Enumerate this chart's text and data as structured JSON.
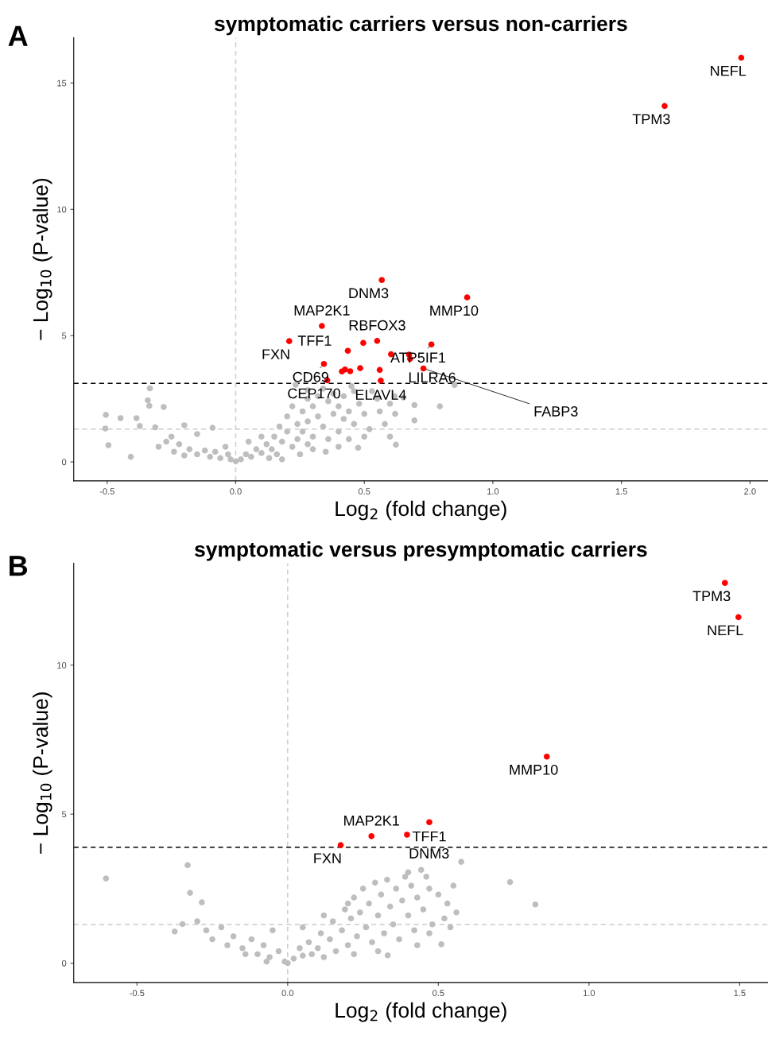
{
  "chart_data": [
    {
      "type": "scatter",
      "title": "symptomatic carriers versus non-carriers",
      "xlabel": "Log$_{2}$ (fold change)",
      "ylabel": "− Log$_{10}$ (P-value)",
      "xlim": [
        -0.63,
        2.07
      ],
      "ylim": [
        -0.75,
        16.8
      ],
      "xticks": [
        {
          "value": -0.5,
          "label": "-0.5"
        },
        {
          "value": 0,
          "label": "0.0"
        },
        {
          "value": 0.5,
          "label": "0.5"
        },
        {
          "value": 1,
          "label": "1.0"
        },
        {
          "value": 1.5,
          "label": "1.5"
        },
        {
          "value": 2,
          "label": "2.0"
        }
      ],
      "yticks": [
        0,
        5,
        10,
        15
      ],
      "grid": false,
      "legend": false,
      "marker": "circle",
      "ref_lines": [
        {
          "axis": "y",
          "value": 3.11,
          "color": "#000000",
          "line_style": "dashed"
        },
        {
          "axis": "y",
          "value": 1.3,
          "color": "#cccccc",
          "line_style": "dashed"
        },
        {
          "axis": "x",
          "value": 0,
          "color": "#cccccc",
          "line_style": "dashed"
        }
      ],
      "series": [
        {
          "color": "#bebebe",
          "x": [
            -0.505,
            -0.507,
            -0.495,
            -0.448,
            -0.386,
            -0.373,
            -0.408,
            -0.334,
            -0.342,
            -0.336,
            -0.28,
            -0.313,
            -0.2,
            -0.15,
            -0.09,
            -0.25,
            -0.27,
            -0.22,
            -0.18,
            -0.24,
            -0.3,
            -0.12,
            -0.1,
            -0.06,
            -0.04,
            -0.15,
            -0.2,
            -0.08,
            -0.02,
            0.0,
            0.02,
            0.04,
            0.06,
            0.08,
            0.05,
            0.1,
            0.12,
            0.1,
            0.14,
            0.15,
            0.17,
            0.16,
            0.18,
            0.2,
            0.2,
            0.22,
            0.22,
            0.24,
            0.24,
            0.26,
            0.26,
            0.28,
            0.28,
            0.28,
            0.3,
            0.3,
            0.32,
            0.32,
            0.34,
            0.34,
            0.36,
            0.36,
            0.38,
            0.38,
            0.4,
            0.4,
            0.42,
            0.42,
            0.44,
            0.44,
            0.46,
            0.46,
            0.48,
            0.5,
            0.5,
            0.233,
            0.28,
            0.851,
            0.794,
            0.695,
            0.695,
            0.652,
            0.618,
            0.623,
            0.476,
            0.55,
            0.56,
            0.58,
            0.53,
            0.6,
            0.62,
            0.52,
            0.35,
            0.25,
            0.4,
            0.6,
            0.13,
            -0.03,
            0.18,
            0.3,
            0.45
          ],
          "values": [
            1.86,
            1.32,
            0.66,
            1.73,
            1.73,
            1.42,
            0.2,
            2.91,
            2.44,
            2.22,
            2.17,
            1.37,
            1.45,
            1.1,
            1.35,
            1.0,
            0.8,
            0.7,
            0.5,
            0.4,
            0.6,
            0.45,
            0.2,
            0.15,
            0.6,
            0.3,
            0.25,
            0.4,
            0.1,
            0.02,
            0.1,
            0.3,
            0.2,
            0.5,
            0.8,
            0.35,
            0.7,
            1.0,
            0.5,
            1.0,
            1.4,
            0.3,
            0.8,
            1.2,
            1.8,
            0.6,
            2.2,
            1.5,
            0.9,
            2.0,
            1.2,
            2.5,
            1.6,
            0.7,
            2.2,
            1.0,
            2.6,
            1.8,
            2.9,
            1.4,
            2.4,
            0.9,
            2.7,
            1.9,
            2.2,
            1.2,
            2.6,
            1.7,
            2.0,
            0.9,
            2.8,
            1.5,
            2.3,
            1.9,
            1.0,
            3.05,
            2.84,
            3.04,
            2.2,
            2.25,
            1.64,
            2.55,
            2.6,
            0.68,
            0.56,
            2.5,
            2.0,
            1.5,
            2.8,
            2.3,
            1.9,
            1.3,
            0.4,
            0.3,
            0.6,
            1.0,
            0.15,
            0.3,
            0.1,
            0.5,
            3.0
          ]
        },
        {
          "color": "#ff0000",
          "x": [
            1.966,
            1.668,
            0.568,
            0.9,
            0.335,
            0.208,
            0.436,
            0.55,
            0.496,
            0.761,
            0.604,
            0.674,
            0.678,
            0.343,
            0.484,
            0.413,
            0.425,
            0.445,
            0.56,
            0.73,
            0.356,
            0.564
          ],
          "values": [
            16.0,
            14.09,
            7.2,
            6.51,
            5.38,
            4.78,
            4.4,
            4.79,
            4.71,
            4.65,
            4.26,
            4.25,
            4.08,
            3.88,
            3.71,
            3.58,
            3.66,
            3.59,
            3.64,
            3.7,
            3.23,
            3.22
          ]
        }
      ],
      "annotations": [
        "A",
        {
          "text": "NEFL",
          "x": 1.966,
          "y": 16.0
        },
        {
          "text": "TPM3",
          "x": 1.668,
          "y": 14.09
        },
        {
          "text": "DNM3",
          "x": 0.568,
          "y": 7.2
        },
        {
          "text": "MMP10",
          "x": 0.9,
          "y": 6.51
        },
        {
          "text": "MAP2K1",
          "x": 0.335,
          "y": 5.38
        },
        {
          "text": "FXN",
          "x": 0.208,
          "y": 4.78
        },
        {
          "text": "TFF1",
          "x": 0.436,
          "y": 4.4
        },
        {
          "text": "RBFOX3",
          "x": 0.55,
          "y": 4.79
        },
        {
          "text": "ATP5IF1",
          "x": 0.761,
          "y": 4.65
        },
        {
          "text": "CD69",
          "x": 0.343,
          "y": 3.88
        },
        {
          "text": "LILRA6",
          "x": 0.678,
          "y": 4.08
        },
        {
          "text": "CEP170",
          "x": 0.356,
          "y": 3.23
        },
        {
          "text": "FABP3",
          "x": 0.73,
          "y": 3.7
        },
        {
          "text": "ELAVL4",
          "x": 0.564,
          "y": 3.22
        }
      ]
    },
    {
      "type": "scatter",
      "title": "symptomatic versus presymptomatic carriers",
      "xlabel": "Log$_{2}$ (fold change)",
      "ylabel": "− Log$_{10}$ (P-value)",
      "xlim": [
        -0.71,
        1.594
      ],
      "ylim": [
        -0.65,
        13.42
      ],
      "xticks": [
        {
          "value": -0.5,
          "label": "-0.5"
        },
        {
          "value": 0,
          "label": "0.0"
        },
        {
          "value": 0.5,
          "label": "0.5"
        },
        {
          "value": 1,
          "label": "1.0"
        },
        {
          "value": 1.5,
          "label": "1.5"
        }
      ],
      "yticks": [
        0,
        5,
        10
      ],
      "grid": false,
      "legend": false,
      "marker": "circle",
      "ref_lines": [
        {
          "axis": "y",
          "value": 3.89,
          "color": "#000000",
          "line_style": "dashed"
        },
        {
          "axis": "y",
          "value": 1.3,
          "color": "#cccccc",
          "line_style": "dashed"
        },
        {
          "axis": "x",
          "value": 0,
          "color": "#cccccc",
          "line_style": "dashed"
        }
      ],
      "series": [
        {
          "color": "#bebebe",
          "x": [
            -0.603,
            -0.332,
            -0.324,
            -0.285,
            -0.375,
            -0.349,
            -0.3,
            -0.27,
            -0.25,
            -0.22,
            -0.2,
            -0.18,
            -0.15,
            -0.12,
            -0.1,
            -0.08,
            -0.06,
            -0.05,
            -0.03,
            -0.01,
            0.0,
            0.02,
            0.04,
            0.05,
            0.07,
            0.08,
            0.1,
            0.11,
            0.12,
            0.14,
            0.15,
            0.16,
            0.18,
            0.19,
            0.2,
            0.21,
            0.22,
            0.23,
            0.24,
            0.25,
            0.26,
            0.27,
            0.28,
            0.29,
            0.3,
            0.31,
            0.32,
            0.33,
            0.34,
            0.35,
            0.36,
            0.37,
            0.38,
            0.39,
            0.4,
            0.41,
            0.42,
            0.43,
            0.443,
            0.45,
            0.47,
            0.48,
            0.5,
            0.51,
            0.332,
            0.576,
            0.738,
            0.822,
            0.53,
            0.55,
            0.52,
            0.56,
            0.46,
            0.4,
            0.3,
            0.2,
            0.12,
            0.05,
            0.43,
            0.22,
            -0.14,
            -0.07,
            0.47,
            0.54
          ],
          "values": [
            2.84,
            3.29,
            2.36,
            2.04,
            1.06,
            1.31,
            1.4,
            1.1,
            0.8,
            1.2,
            0.6,
            0.9,
            0.5,
            0.8,
            0.3,
            0.6,
            0.2,
            1.1,
            0.4,
            0.05,
            0.0,
            0.15,
            0.5,
            0.25,
            0.7,
            0.3,
            0.5,
            1.0,
            0.2,
            0.8,
            1.4,
            0.4,
            1.1,
            1.8,
            0.6,
            1.5,
            2.2,
            0.9,
            1.7,
            2.5,
            1.2,
            2.0,
            0.7,
            2.7,
            1.6,
            2.3,
            1.0,
            2.8,
            1.9,
            1.3,
            2.5,
            0.8,
            2.1,
            2.9,
            1.6,
            2.6,
            1.1,
            2.2,
            3.13,
            1.8,
            2.5,
            1.3,
            2.3,
            0.63,
            0.26,
            3.4,
            2.72,
            1.97,
            2.0,
            2.6,
            1.5,
            1.7,
            2.9,
            3.05,
            0.4,
            2.0,
            1.6,
            1.2,
            0.6,
            0.3,
            0.3,
            0.05,
            1.0,
            1.2
          ]
        },
        {
          "color": "#ff0000",
          "x": [
            1.451,
            1.496,
            0.86,
            0.47,
            0.396,
            0.278,
            0.176
          ],
          "values": [
            12.76,
            11.61,
            6.93,
            4.73,
            4.31,
            4.26,
            3.96
          ]
        }
      ],
      "annotations": [
        "B",
        {
          "text": "TPM3",
          "x": 1.451,
          "y": 12.76
        },
        {
          "text": "NEFL",
          "x": 1.496,
          "y": 11.61
        },
        {
          "text": "MMP10",
          "x": 0.86,
          "y": 6.93
        },
        {
          "text": "TFF1",
          "x": 0.47,
          "y": 4.73
        },
        {
          "text": "MAP2K1",
          "x": 0.278,
          "y": 4.26
        },
        {
          "text": "DNM3",
          "x": 0.396,
          "y": 4.31
        },
        {
          "text": "FXN",
          "x": 0.176,
          "y": 3.96
        }
      ]
    }
  ]
}
